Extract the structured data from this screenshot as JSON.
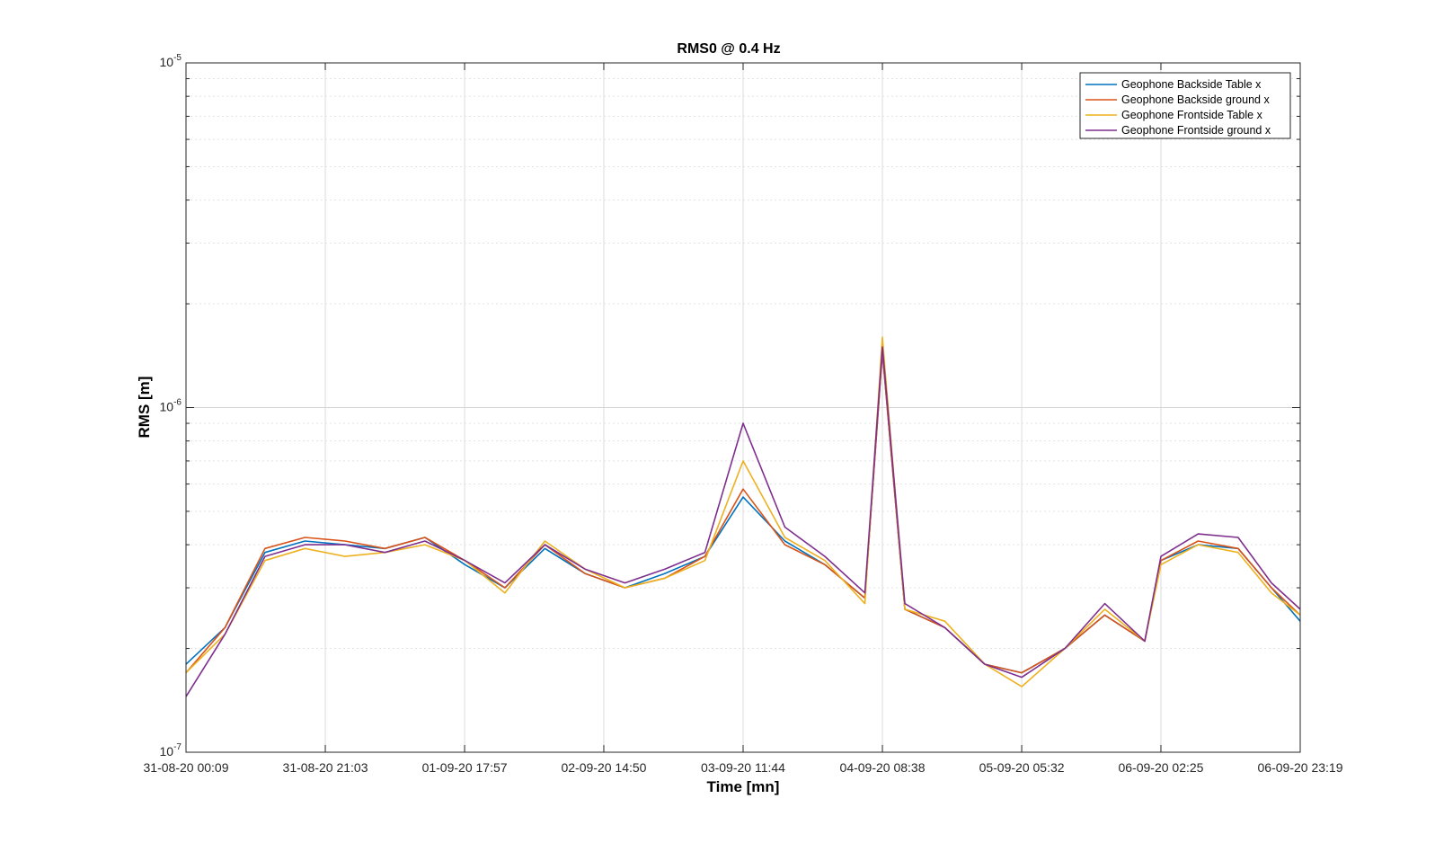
{
  "chart_data": {
    "type": "line",
    "title": "RMS0 @ 0.4 Hz",
    "xlabel": "Time [mn]",
    "ylabel": "RMS [m]",
    "y_scale": "log",
    "ylim": [
      1e-07,
      1e-05
    ],
    "xlim": [
      "31-08-20 00:09",
      "06-09-20 23:19"
    ],
    "x_tick_labels": [
      "31-08-20 00:09",
      "31-08-20 21:03",
      "01-09-20 17:57",
      "02-09-20 14:50",
      "03-09-20 11:44",
      "04-09-20 08:38",
      "05-09-20 05:32",
      "06-09-20 02:25",
      "06-09-20 23:19"
    ],
    "y_ticks": [
      {
        "value": 1e-07,
        "base": "10",
        "exp": "-7"
      },
      {
        "value": 1e-06,
        "base": "10",
        "exp": "-6"
      },
      {
        "value": 1e-05,
        "base": "10",
        "exp": "-5"
      }
    ],
    "grid": true,
    "legend_position": "top-right",
    "series": [
      {
        "name": "Geophone Backside Table x",
        "color": "#0072BD",
        "x": [
          "31-08-20 00:09",
          "31-08-20 06:00",
          "31-08-20 12:00",
          "31-08-20 18:00",
          "01-09-20 00:00",
          "01-09-20 06:00",
          "01-09-20 12:00",
          "01-09-20 18:00",
          "02-09-20 00:00",
          "02-09-20 06:00",
          "02-09-20 12:00",
          "02-09-20 18:00",
          "03-09-20 00:00",
          "03-09-20 06:00",
          "03-09-20 11:44",
          "03-09-20 18:00",
          "04-09-20 00:00",
          "04-09-20 06:00",
          "04-09-20 08:38",
          "04-09-20 12:00",
          "04-09-20 18:00",
          "05-09-20 00:00",
          "05-09-20 05:32",
          "05-09-20 12:00",
          "05-09-20 18:00",
          "06-09-20 00:00",
          "06-09-20 02:25",
          "06-09-20 08:00",
          "06-09-20 14:00",
          "06-09-20 19:00",
          "06-09-20 23:19"
        ],
        "values": [
          1.8e-07,
          2.3e-07,
          3.8e-07,
          4.1e-07,
          4e-07,
          3.9e-07,
          4.2e-07,
          3.5e-07,
          3e-07,
          3.9e-07,
          3.3e-07,
          3e-07,
          3.3e-07,
          3.7e-07,
          5.5e-07,
          4.1e-07,
          3.5e-07,
          2.8e-07,
          1.45e-06,
          2.6e-07,
          2.3e-07,
          1.8e-07,
          1.7e-07,
          2e-07,
          2.5e-07,
          2.1e-07,
          3.6e-07,
          4e-07,
          3.9e-07,
          3e-07,
          2.4e-07
        ]
      },
      {
        "name": "Geophone Backside ground x",
        "color": "#D95319",
        "x": [
          "31-08-20 00:09",
          "31-08-20 06:00",
          "31-08-20 12:00",
          "31-08-20 18:00",
          "01-09-20 00:00",
          "01-09-20 06:00",
          "01-09-20 12:00",
          "01-09-20 18:00",
          "02-09-20 00:00",
          "02-09-20 06:00",
          "02-09-20 12:00",
          "02-09-20 18:00",
          "03-09-20 00:00",
          "03-09-20 06:00",
          "03-09-20 11:44",
          "03-09-20 18:00",
          "04-09-20 00:00",
          "04-09-20 06:00",
          "04-09-20 08:38",
          "04-09-20 12:00",
          "04-09-20 18:00",
          "05-09-20 00:00",
          "05-09-20 05:32",
          "05-09-20 12:00",
          "05-09-20 18:00",
          "06-09-20 00:00",
          "06-09-20 02:25",
          "06-09-20 08:00",
          "06-09-20 14:00",
          "06-09-20 19:00",
          "06-09-20 23:19"
        ],
        "values": [
          1.7e-07,
          2.3e-07,
          3.9e-07,
          4.2e-07,
          4.1e-07,
          3.9e-07,
          4.2e-07,
          3.6e-07,
          3e-07,
          4e-07,
          3.3e-07,
          3e-07,
          3.2e-07,
          3.7e-07,
          5.8e-07,
          4e-07,
          3.5e-07,
          2.8e-07,
          1.45e-06,
          2.6e-07,
          2.3e-07,
          1.8e-07,
          1.7e-07,
          2e-07,
          2.5e-07,
          2.1e-07,
          3.6e-07,
          4.1e-07,
          3.9e-07,
          3e-07,
          2.5e-07
        ]
      },
      {
        "name": "Geophone Frontside Table x",
        "color": "#EDB120",
        "x": [
          "31-08-20 00:09",
          "31-08-20 06:00",
          "31-08-20 12:00",
          "31-08-20 18:00",
          "01-09-20 00:00",
          "01-09-20 06:00",
          "01-09-20 12:00",
          "01-09-20 18:00",
          "02-09-20 00:00",
          "02-09-20 06:00",
          "02-09-20 12:00",
          "02-09-20 18:00",
          "03-09-20 00:00",
          "03-09-20 06:00",
          "03-09-20 11:44",
          "03-09-20 18:00",
          "04-09-20 00:00",
          "04-09-20 06:00",
          "04-09-20 08:38",
          "04-09-20 12:00",
          "04-09-20 18:00",
          "05-09-20 00:00",
          "05-09-20 05:32",
          "05-09-20 12:00",
          "05-09-20 18:00",
          "06-09-20 00:00",
          "06-09-20 02:25",
          "06-09-20 08:00",
          "06-09-20 14:00",
          "06-09-20 19:00",
          "06-09-20 23:19"
        ],
        "values": [
          1.7e-07,
          2.2e-07,
          3.6e-07,
          3.9e-07,
          3.7e-07,
          3.8e-07,
          4e-07,
          3.6e-07,
          2.9e-07,
          4.1e-07,
          3.4e-07,
          3e-07,
          3.2e-07,
          3.6e-07,
          7e-07,
          4.2e-07,
          3.6e-07,
          2.7e-07,
          1.6e-06,
          2.6e-07,
          2.4e-07,
          1.8e-07,
          1.55e-07,
          2e-07,
          2.6e-07,
          2.1e-07,
          3.5e-07,
          4e-07,
          3.8e-07,
          2.9e-07,
          2.5e-07
        ]
      },
      {
        "name": "Geophone Frontside ground x",
        "color": "#7E2F8E",
        "x": [
          "31-08-20 00:09",
          "31-08-20 06:00",
          "31-08-20 12:00",
          "31-08-20 18:00",
          "01-09-20 00:00",
          "01-09-20 06:00",
          "01-09-20 12:00",
          "01-09-20 18:00",
          "02-09-20 00:00",
          "02-09-20 06:00",
          "02-09-20 12:00",
          "02-09-20 18:00",
          "03-09-20 00:00",
          "03-09-20 06:00",
          "03-09-20 11:44",
          "03-09-20 18:00",
          "04-09-20 00:00",
          "04-09-20 06:00",
          "04-09-20 08:38",
          "04-09-20 12:00",
          "04-09-20 18:00",
          "05-09-20 00:00",
          "05-09-20 05:32",
          "05-09-20 12:00",
          "05-09-20 18:00",
          "06-09-20 00:00",
          "06-09-20 02:25",
          "06-09-20 08:00",
          "06-09-20 14:00",
          "06-09-20 19:00",
          "06-09-20 23:19"
        ],
        "values": [
          1.45e-07,
          2.2e-07,
          3.7e-07,
          4e-07,
          4e-07,
          3.8e-07,
          4.1e-07,
          3.6e-07,
          3.1e-07,
          4e-07,
          3.4e-07,
          3.1e-07,
          3.4e-07,
          3.8e-07,
          9e-07,
          4.5e-07,
          3.7e-07,
          2.9e-07,
          1.5e-06,
          2.7e-07,
          2.3e-07,
          1.8e-07,
          1.65e-07,
          2e-07,
          2.7e-07,
          2.1e-07,
          3.7e-07,
          4.3e-07,
          4.2e-07,
          3.1e-07,
          2.6e-07
        ]
      }
    ]
  }
}
